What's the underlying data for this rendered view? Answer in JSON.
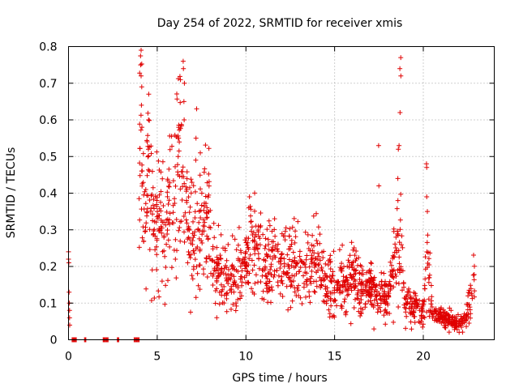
{
  "chart_data": {
    "type": "scatter",
    "title": "Day 254 of 2022, SRMTID for receiver xmis",
    "xlabel": "GPS time / hours",
    "ylabel": "SRMTID / TECUs",
    "xlim": [
      0,
      24
    ],
    "ylim": [
      0,
      0.8
    ],
    "xticks": [
      "0",
      "5",
      "10",
      "15",
      "20"
    ],
    "yticks": [
      "0",
      "0.1",
      "0.2",
      "0.3",
      "0.4",
      "0.5",
      "0.6",
      "0.7",
      "0.8"
    ],
    "grid": true,
    "marker": "+",
    "color": "#e00000",
    "envelope": [
      [
        0.0,
        0.24
      ],
      [
        0.05,
        0.12
      ],
      [
        0.3,
        0.0
      ],
      [
        3.9,
        0.0
      ],
      [
        4.05,
        0.62
      ],
      [
        4.2,
        0.4
      ],
      [
        4.5,
        0.45
      ],
      [
        4.8,
        0.28
      ],
      [
        5.0,
        0.34
      ],
      [
        5.5,
        0.3
      ],
      [
        6.0,
        0.42
      ],
      [
        6.3,
        0.52
      ],
      [
        6.6,
        0.34
      ],
      [
        7.0,
        0.26
      ],
      [
        7.5,
        0.3
      ],
      [
        7.9,
        0.36
      ],
      [
        8.2,
        0.2
      ],
      [
        9.0,
        0.16
      ],
      [
        10.0,
        0.21
      ],
      [
        10.3,
        0.28
      ],
      [
        11.0,
        0.2
      ],
      [
        12.0,
        0.22
      ],
      [
        13.0,
        0.19
      ],
      [
        14.0,
        0.2
      ],
      [
        15.0,
        0.14
      ],
      [
        16.0,
        0.17
      ],
      [
        17.0,
        0.13
      ],
      [
        18.0,
        0.11
      ],
      [
        18.7,
        0.28
      ],
      [
        19.0,
        0.1
      ],
      [
        19.5,
        0.09
      ],
      [
        20.0,
        0.08
      ],
      [
        20.2,
        0.24
      ],
      [
        20.5,
        0.07
      ],
      [
        21.0,
        0.06
      ],
      [
        22.0,
        0.045
      ],
      [
        22.4,
        0.05
      ],
      [
        22.6,
        0.11
      ],
      [
        22.9,
        0.15
      ]
    ],
    "spikes": [
      {
        "x": 4.1,
        "values": [
          0.75,
          0.72,
          0.69,
          0.64,
          0.58
        ]
      },
      {
        "x": 4.5,
        "values": [
          0.67,
          0.6,
          0.52
        ]
      },
      {
        "x": 6.2,
        "values": [
          0.58,
          0.55,
          0.5,
          0.45
        ]
      },
      {
        "x": 6.5,
        "values": [
          0.76,
          0.74,
          0.7,
          0.65,
          0.6
        ]
      },
      {
        "x": 7.2,
        "values": [
          0.63,
          0.55,
          0.49
        ]
      },
      {
        "x": 10.2,
        "values": [
          0.39,
          0.36
        ]
      },
      {
        "x": 17.5,
        "values": [
          0.53,
          0.42
        ]
      },
      {
        "x": 18.6,
        "values": [
          0.53,
          0.52,
          0.44,
          0.38
        ]
      },
      {
        "x": 18.7,
        "values": [
          0.77,
          0.74,
          0.72,
          0.62
        ]
      },
      {
        "x": 20.2,
        "values": [
          0.48,
          0.47,
          0.39,
          0.35
        ]
      }
    ],
    "zero_runs": [
      {
        "x_start": 0.2,
        "x_end": 0.45
      },
      {
        "x_start": 0.9,
        "x_end": 1.0
      },
      {
        "x_start": 1.95,
        "x_end": 2.25
      },
      {
        "x_start": 2.75,
        "x_end": 2.85
      },
      {
        "x_start": 3.7,
        "x_end": 4.0
      }
    ]
  }
}
